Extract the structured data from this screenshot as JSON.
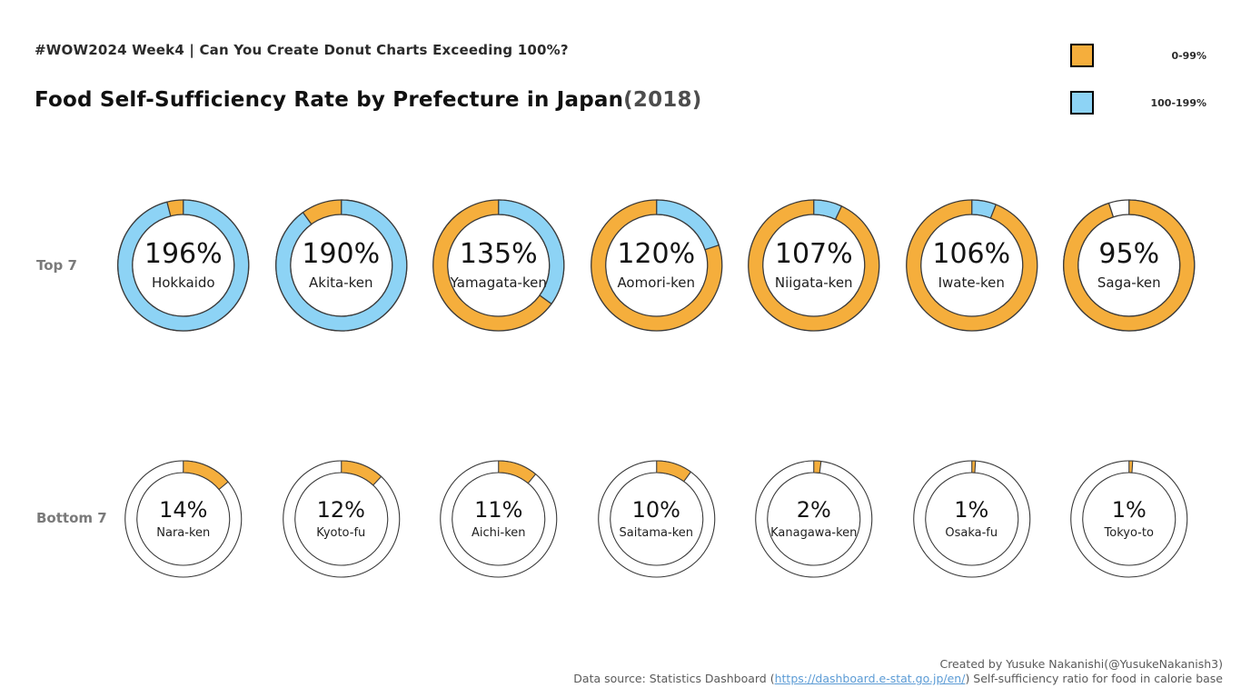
{
  "header": {
    "subtitle": "#WOW2024 Week4 | Can You Create Donut Charts Exceeding 100%?",
    "title_main": "Food Self-Sufficiency Rate by Prefecture in Japan",
    "title_year": "(2018)"
  },
  "legend": {
    "position": "top-right",
    "items": [
      {
        "label": "0-99%",
        "color": "#F5AE3C"
      },
      {
        "label": "100-199%",
        "color": "#8DD3F5"
      }
    ]
  },
  "chart_data": {
    "type": "donut-grid",
    "title": "Food Self-Sufficiency Rate by Prefecture in Japan(2018)",
    "unit": "%",
    "value_range": [
      0,
      199
    ],
    "band_colors": {
      "0-99": "#F5AE3C",
      "100-199": "#8DD3F5",
      "empty": "#FFFFFF"
    },
    "ring_outline_color": "#3a3a3a",
    "rows": [
      {
        "label": "Top 7",
        "items": [
          {
            "name": "Hokkaido",
            "value": 196
          },
          {
            "name": "Akita-ken",
            "value": 190
          },
          {
            "name": "Yamagata-ken",
            "value": 135
          },
          {
            "name": "Aomori-ken",
            "value": 120
          },
          {
            "name": "Niigata-ken",
            "value": 107
          },
          {
            "name": "Iwate-ken",
            "value": 106
          },
          {
            "name": "Saga-ken",
            "value": 95
          }
        ]
      },
      {
        "label": "Bottom 7",
        "items": [
          {
            "name": "Nara-ken",
            "value": 14
          },
          {
            "name": "Kyoto-fu",
            "value": 12
          },
          {
            "name": "Aichi-ken",
            "value": 11
          },
          {
            "name": "Saitama-ken",
            "value": 10
          },
          {
            "name": "Kanagawa-ken",
            "value": 2
          },
          {
            "name": "Osaka-fu",
            "value": 1
          },
          {
            "name": "Tokyo-to",
            "value": 1
          }
        ]
      }
    ]
  },
  "footer": {
    "credit": "Created by Yusuke Nakanishi(@YusukeNakanish3)",
    "source_prefix": "Data source: Statistics Dashboard (",
    "source_link": "https://dashboard.e-stat.go.jp/en/",
    "source_suffix": ") Self-sufficiency ratio for food in calorie base"
  }
}
